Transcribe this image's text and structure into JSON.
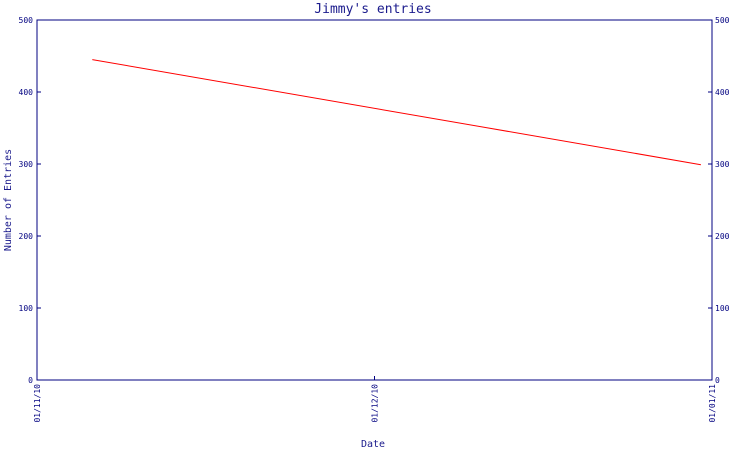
{
  "chart_data": {
    "type": "line",
    "title": "Jimmy's entries",
    "xlabel": "Date",
    "ylabel": "Number of Entries",
    "x_ticks": [
      "01/11/10",
      "01/12/10",
      "01/01/11"
    ],
    "y_ticks": [
      "0",
      "100",
      "200",
      "300",
      "400",
      "500"
    ],
    "ylim": [
      0,
      500
    ],
    "xlim": [
      "2010-11-01",
      "2011-01-01"
    ],
    "series": [
      {
        "x": [
          "2010-11-06",
          "2010-12-31"
        ],
        "values": [
          445,
          299
        ],
        "color": "#ff0000"
      }
    ],
    "grid": false,
    "axis_color": "#000080",
    "title_color": "#1a1a8c"
  }
}
